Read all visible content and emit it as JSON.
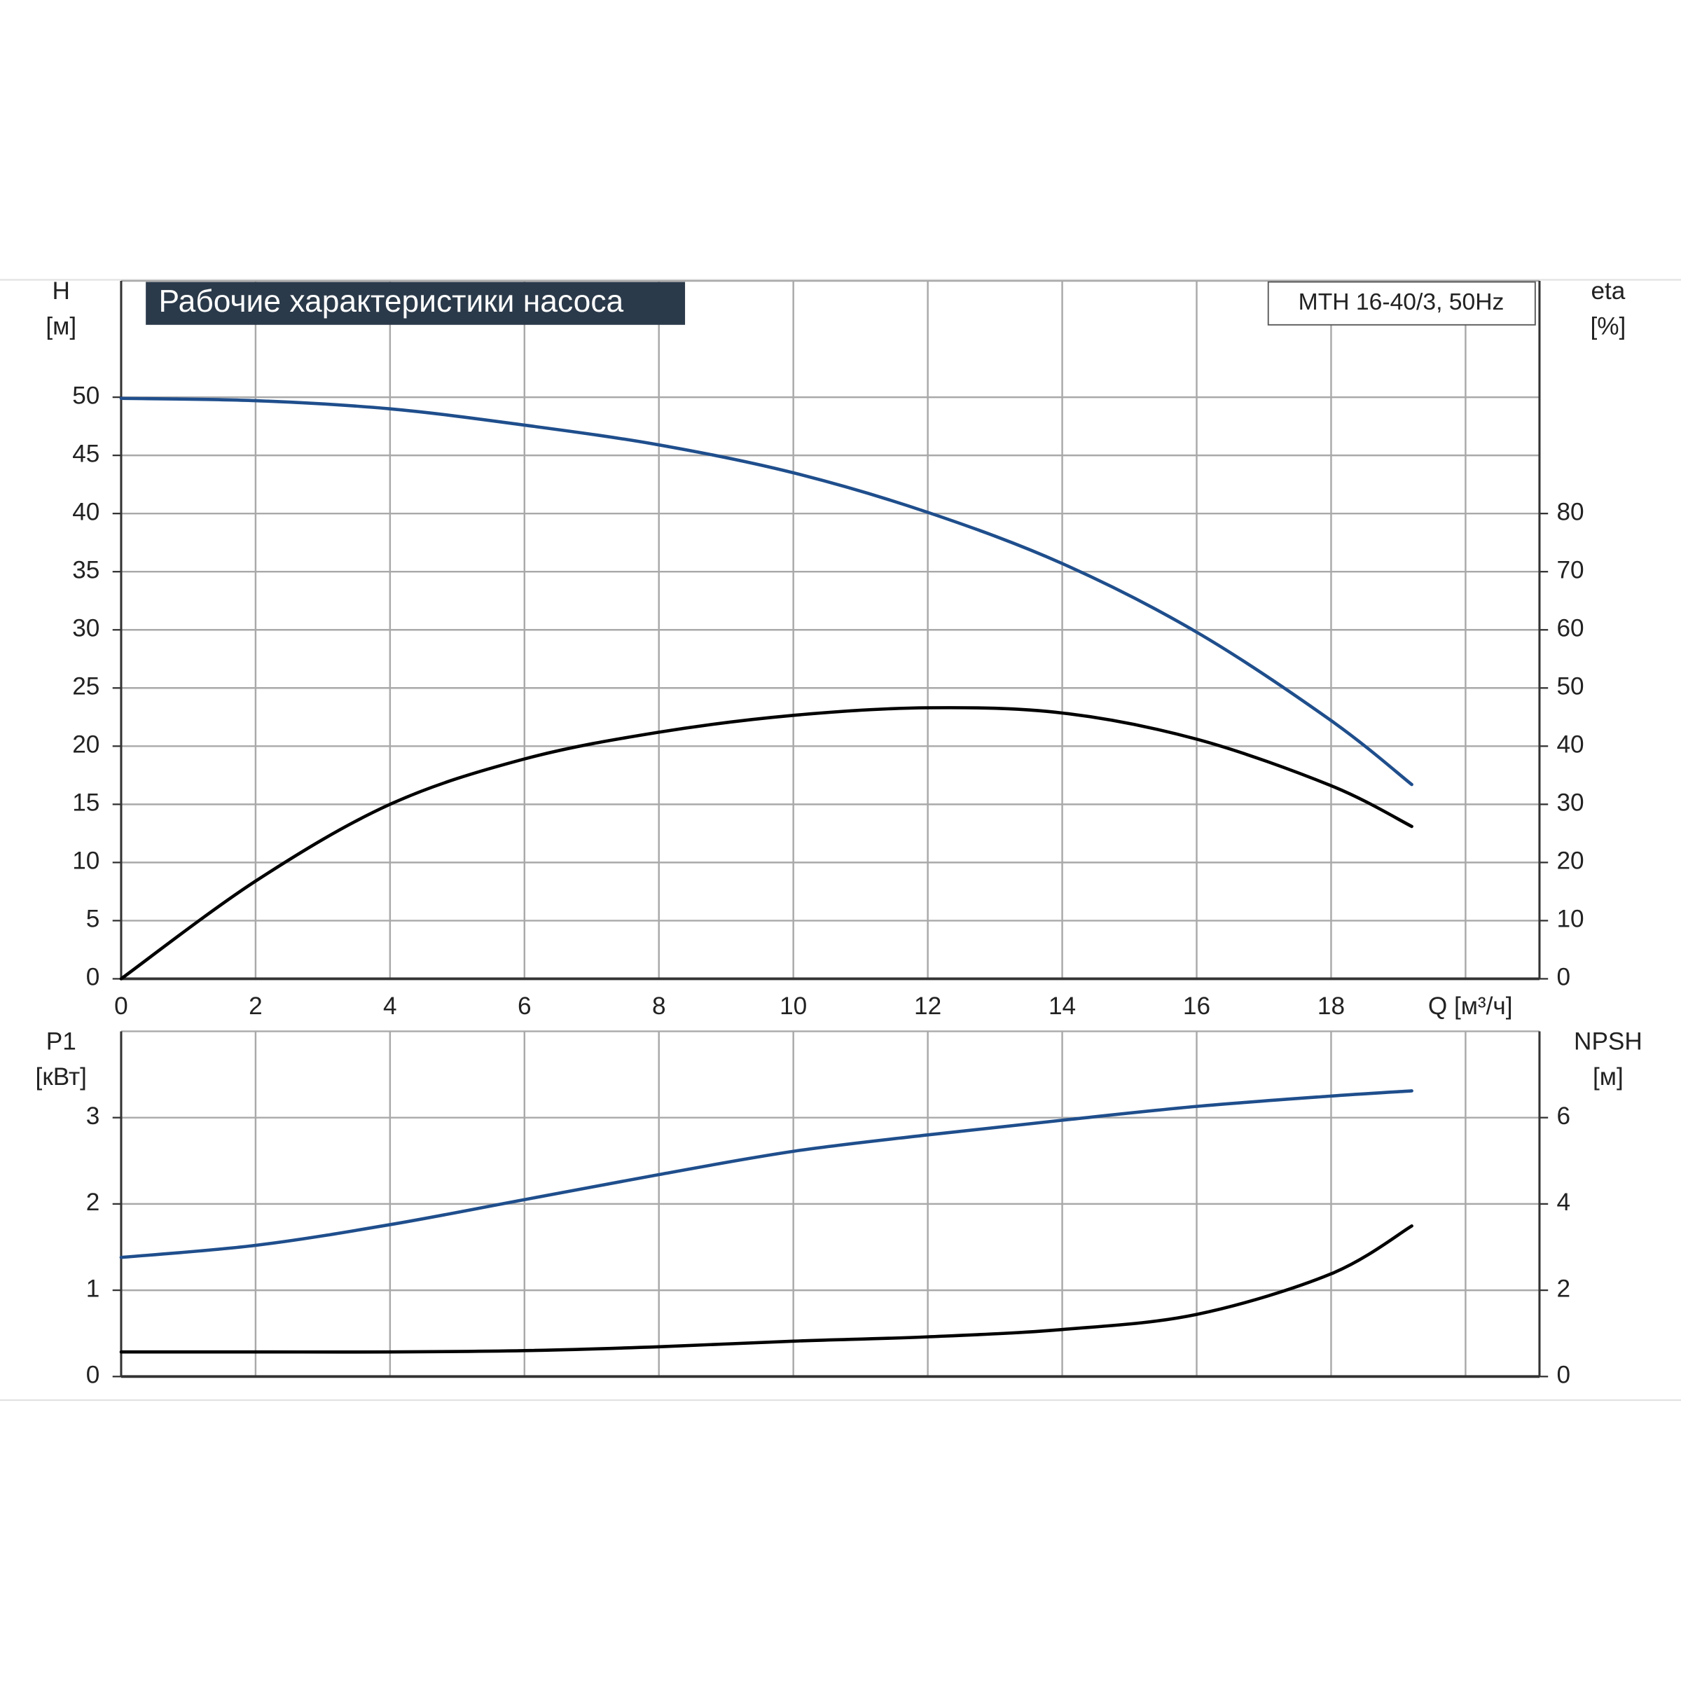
{
  "chart_data": [
    {
      "type": "line",
      "title": "Рабочие характеристики насоса",
      "model": "MTH 16-40/3, 50Hz",
      "ylabel": [
        "H",
        "[м]"
      ],
      "y2label": [
        "eta",
        "[%]"
      ],
      "x": [
        0,
        2,
        4,
        6,
        8,
        10,
        12,
        14,
        16,
        18,
        19.2
      ],
      "series": [
        {
          "name": "H",
          "color": "#1f4e8c",
          "values": [
            49.9,
            49.7,
            49.0,
            47.6,
            45.9,
            43.5,
            40.1,
            35.7,
            29.8,
            22.2,
            16.7
          ]
        },
        {
          "name": "eta",
          "color": "#000000",
          "axis": "y2",
          "values": [
            0,
            16.8,
            30,
            37.8,
            42.4,
            45.3,
            46.6,
            45.7,
            41.2,
            33.2,
            26.2
          ]
        }
      ],
      "xlim": [
        0,
        21.1
      ],
      "xticks": [
        0,
        2,
        4,
        6,
        8,
        10,
        12,
        14,
        16,
        18,
        {
          "value": 20,
          "label": "Q [м³/ч]"
        }
      ],
      "show_xtick_labels": true,
      "ylim": [
        0,
        60
      ],
      "yticks": [
        0,
        5,
        10,
        15,
        20,
        25,
        30,
        35,
        40,
        45,
        50
      ],
      "y2lim": [
        0,
        120
      ],
      "y2ticks": [
        0,
        10,
        20,
        30,
        40,
        50,
        60,
        70,
        80
      ],
      "grid": true
    },
    {
      "type": "line",
      "ylabel": [
        "P1",
        "[кВт]"
      ],
      "y2label": [
        "NPSH",
        "[м]"
      ],
      "x": [
        0,
        2,
        4,
        6,
        8,
        10,
        12,
        14,
        16,
        18,
        19.2
      ],
      "series": [
        {
          "name": "P1",
          "color": "#1f4e8c",
          "values": [
            1.38,
            1.52,
            1.76,
            2.05,
            2.34,
            2.61,
            2.8,
            2.97,
            3.13,
            3.25,
            3.31
          ]
        },
        {
          "name": "NPSH",
          "color": "#000000",
          "axis": "y2",
          "values": [
            0.57,
            0.57,
            0.57,
            0.6,
            0.69,
            0.82,
            0.92,
            1.09,
            1.44,
            2.38,
            3.49
          ]
        }
      ],
      "xlim": [
        0,
        21.1
      ],
      "xticks": [
        0,
        2,
        4,
        6,
        8,
        10,
        12,
        14,
        16,
        18,
        20
      ],
      "show_xtick_labels": false,
      "ylim": [
        0,
        4
      ],
      "yticks": [
        0,
        1,
        2,
        3
      ],
      "y2lim": [
        0,
        8
      ],
      "y2ticks": [
        0,
        2,
        4,
        6
      ],
      "grid": true
    }
  ]
}
